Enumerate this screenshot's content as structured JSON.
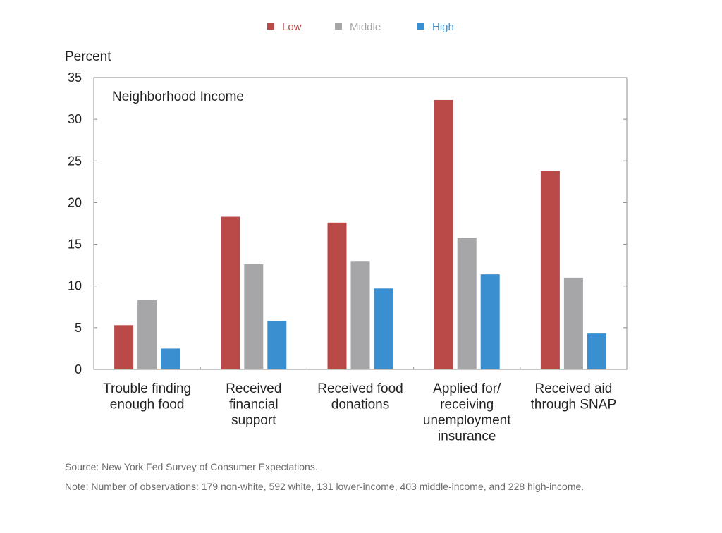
{
  "chart_data": {
    "type": "bar",
    "ylabel": "Percent",
    "annotation": "Neighborhood Income",
    "ylim": [
      0,
      35
    ],
    "yticks": [
      "0",
      "5",
      "10",
      "15",
      "20",
      "25",
      "30",
      "35"
    ],
    "grid": false,
    "legend_position": "top-center",
    "categories": [
      [
        "Trouble finding",
        "enough food"
      ],
      [
        "Received",
        "financial",
        "support"
      ],
      [
        "Received food",
        "donations"
      ],
      [
        "Applied for/",
        "receiving",
        "unemployment",
        "insurance"
      ],
      [
        "Received aid",
        "through SNAP"
      ]
    ],
    "series": [
      {
        "name": "Low",
        "color": "#b94a48",
        "values": [
          5.3,
          18.3,
          17.6,
          32.3,
          23.8
        ]
      },
      {
        "name": "Middle",
        "color": "#a6a6a8",
        "values": [
          8.3,
          12.6,
          13.0,
          15.8,
          11.0
        ]
      },
      {
        "name": "High",
        "color": "#3a8fd0",
        "values": [
          2.5,
          5.8,
          9.7,
          11.4,
          4.3
        ]
      }
    ]
  },
  "notes": {
    "source": "Source: New York Fed Survey of Consumer Expectations.",
    "observations": "Note: Number of observations: 179 non-white, 592 white, 131 lower-income, 403 middle-income, and 228 high-income."
  }
}
